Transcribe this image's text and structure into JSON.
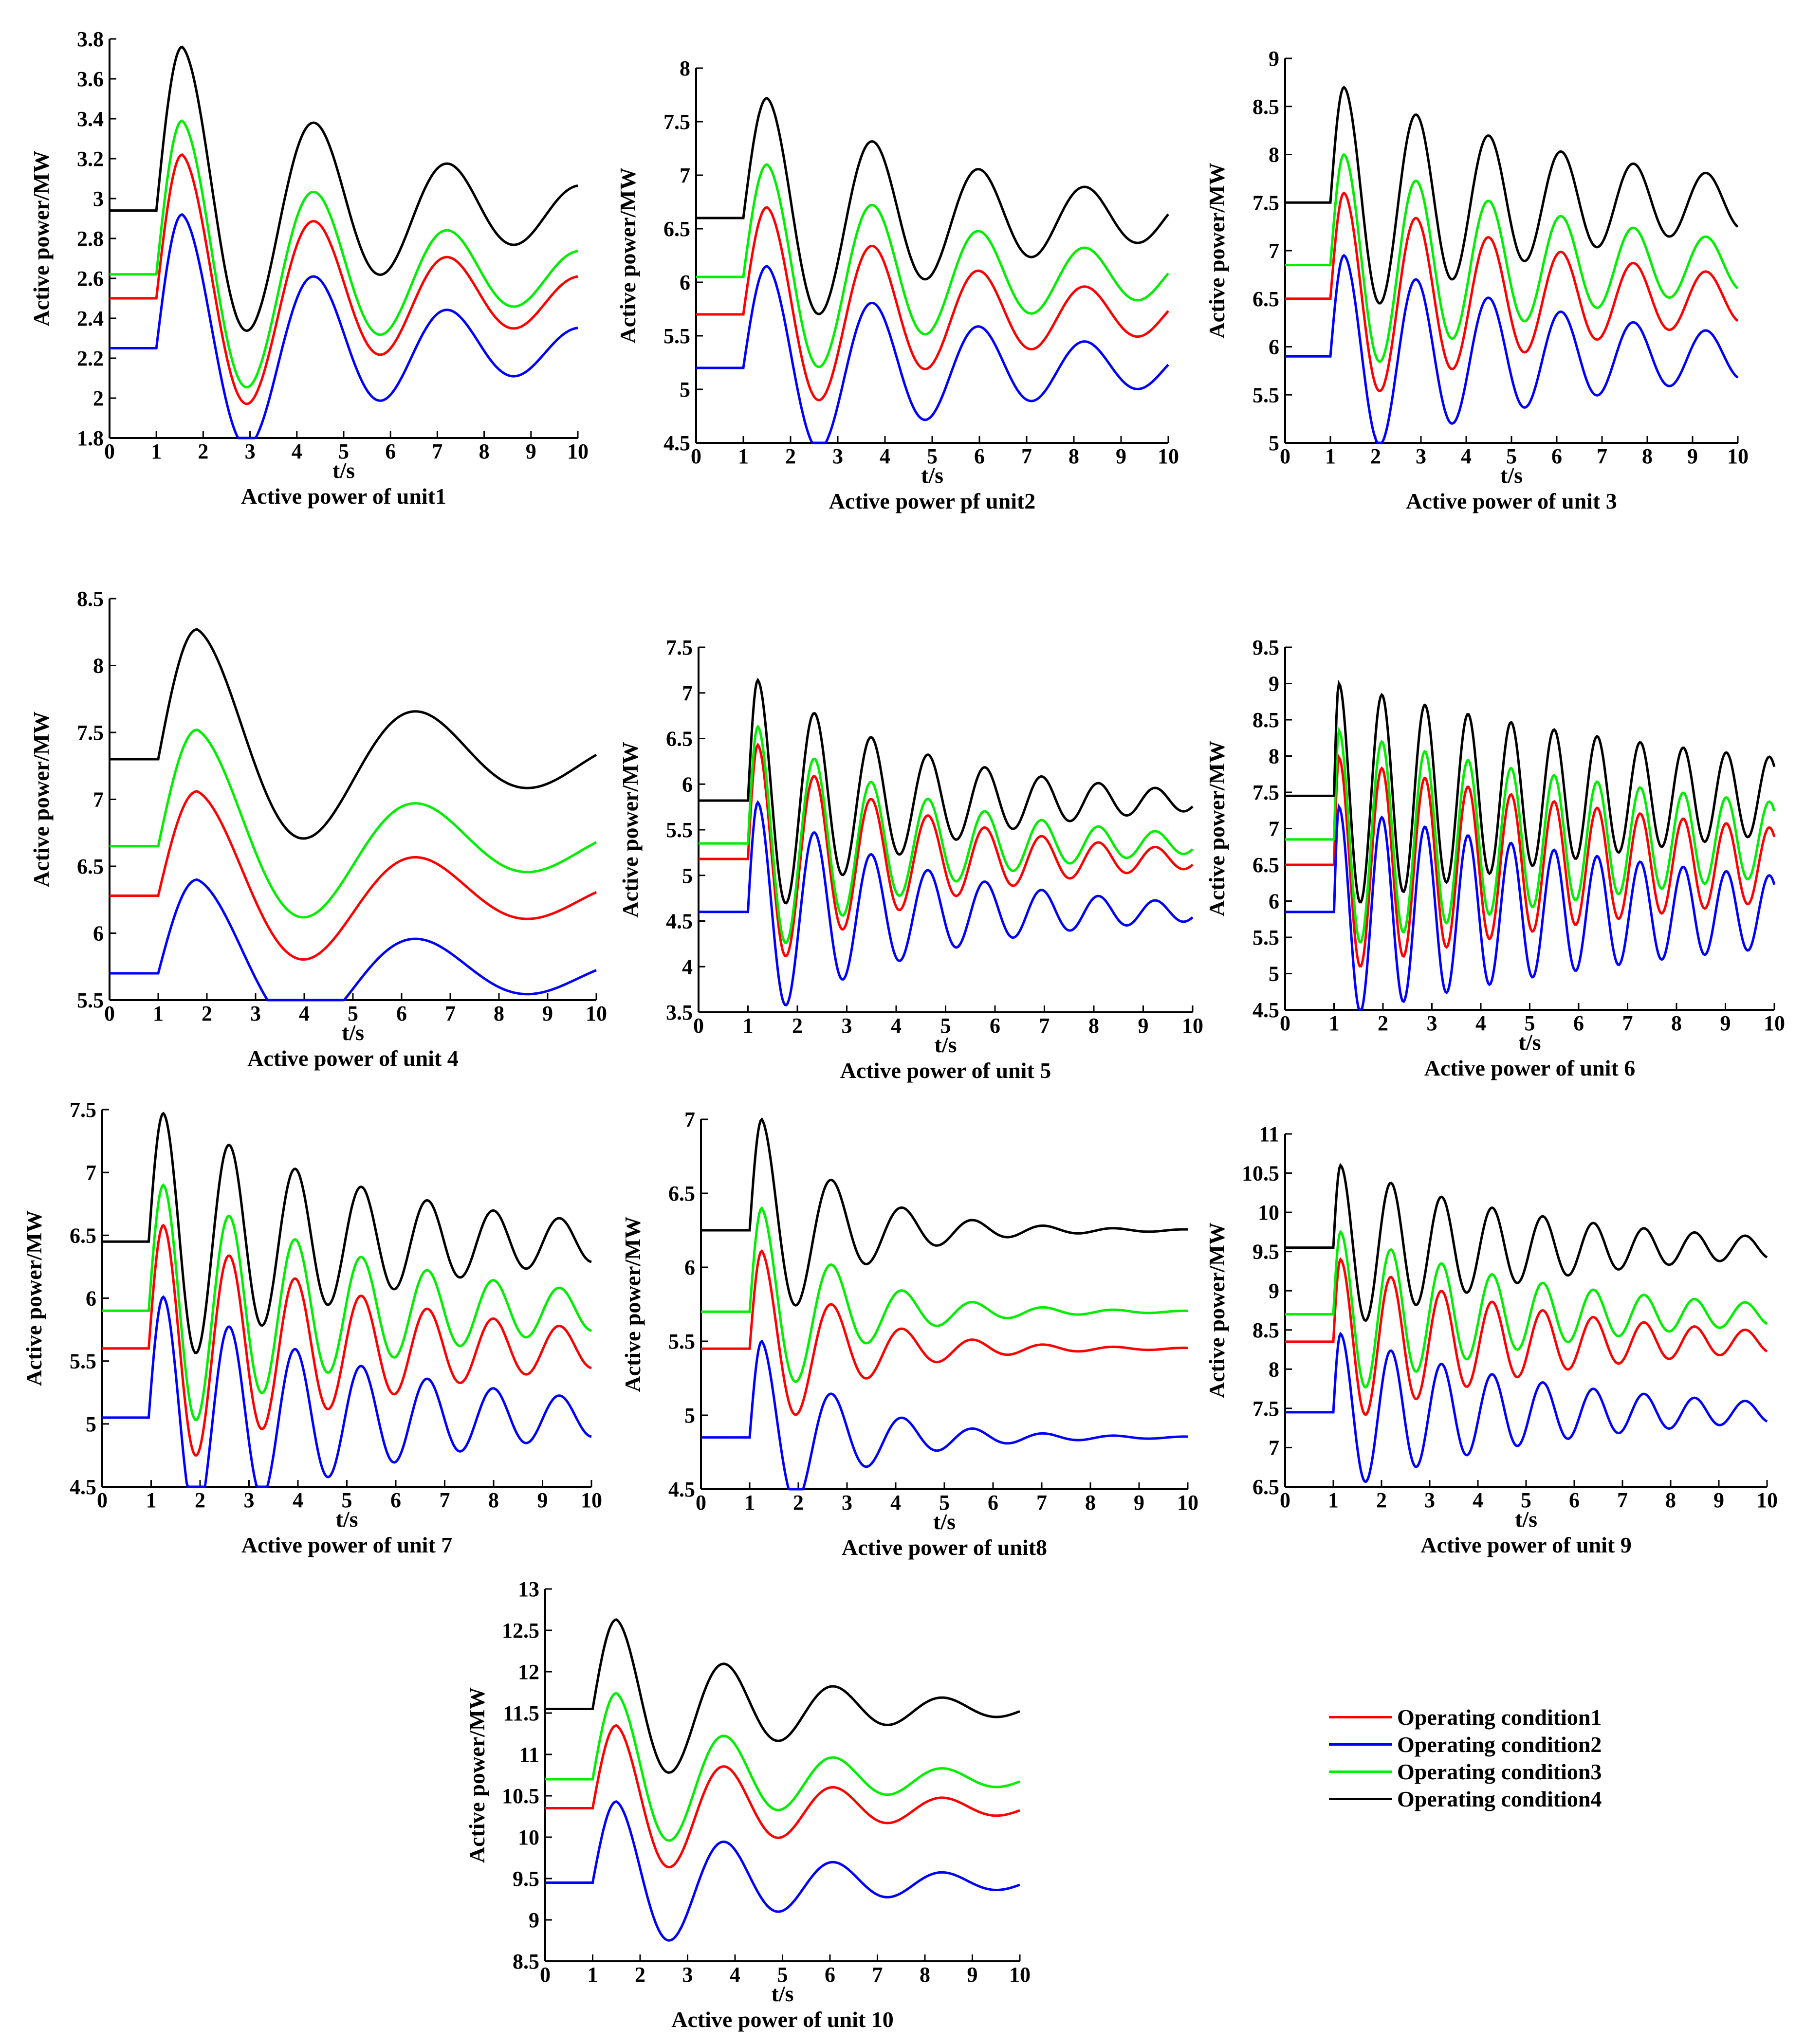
{
  "chart_data": [
    {
      "type": "line",
      "title": "Active power of unit1",
      "xlabel": "t/s",
      "ylabel": "Active power/MW",
      "xlim": [
        0,
        10
      ],
      "ylim": [
        1.8,
        3.8
      ],
      "xticks": [
        "0",
        "1",
        "2",
        "3",
        "4",
        "5",
        "6",
        "7",
        "8",
        "9",
        "10"
      ],
      "yticks": [
        "1.8",
        "2",
        "2.2",
        "2.4",
        "2.6",
        "2.8",
        "3",
        "3.2",
        "3.4",
        "3.6",
        "3.8"
      ],
      "t_step": 1.0,
      "peak_time": 1.55,
      "period": 2.85,
      "decay": 0.22,
      "series": [
        {
          "name": "Operating condition1",
          "color": "#ff0000",
          "base": 2.5,
          "amp": 0.72
        },
        {
          "name": "Operating condition2",
          "color": "#0000ff",
          "base": 2.25,
          "amp": 0.67
        },
        {
          "name": "Operating condition3",
          "color": "#00ee00",
          "base": 2.62,
          "amp": 0.77
        },
        {
          "name": "Operating condition4",
          "color": "#000000",
          "base": 2.94,
          "amp": 0.82
        }
      ]
    },
    {
      "type": "line",
      "title": "Active power pf unit2",
      "xlabel": "t/s",
      "ylabel": "Active power/MW",
      "xlim": [
        0,
        10
      ],
      "ylim": [
        4.5,
        8
      ],
      "xticks": [
        "0",
        "1",
        "2",
        "3",
        "4",
        "5",
        "6",
        "7",
        "8",
        "9",
        "10"
      ],
      "yticks": [
        "4.5",
        "5",
        "5.5",
        "6",
        "6.5",
        "7",
        "7.5",
        "8"
      ],
      "t_step": 1.0,
      "peak_time": 1.5,
      "period": 2.25,
      "decay": 0.2,
      "series": [
        {
          "name": "Operating condition1",
          "color": "#ff0000",
          "base": 5.7,
          "amp": 1.0
        },
        {
          "name": "Operating condition2",
          "color": "#0000ff",
          "base": 5.2,
          "amp": 0.95
        },
        {
          "name": "Operating condition3",
          "color": "#00ee00",
          "base": 6.05,
          "amp": 1.05
        },
        {
          "name": "Operating condition4",
          "color": "#000000",
          "base": 6.6,
          "amp": 1.12
        }
      ]
    },
    {
      "type": "line",
      "title": "Active power of unit 3",
      "xlabel": "t/s",
      "ylabel": "Active power/MW",
      "xlim": [
        0,
        10
      ],
      "ylim": [
        5,
        9
      ],
      "xticks": [
        "0",
        "1",
        "2",
        "3",
        "4",
        "5",
        "6",
        "7",
        "8",
        "9",
        "10"
      ],
      "yticks": [
        "5",
        "5.5",
        "6",
        "6.5",
        "7",
        "7.5",
        "8",
        "8.5",
        "9"
      ],
      "t_step": 1.0,
      "peak_time": 1.3,
      "period": 1.6,
      "decay": 0.17,
      "series": [
        {
          "name": "Operating condition1",
          "color": "#ff0000",
          "base": 6.5,
          "amp": 1.1
        },
        {
          "name": "Operating condition2",
          "color": "#0000ff",
          "base": 5.9,
          "amp": 1.05
        },
        {
          "name": "Operating condition3",
          "color": "#00ee00",
          "base": 6.85,
          "amp": 1.15
        },
        {
          "name": "Operating condition4",
          "color": "#000000",
          "base": 7.5,
          "amp": 1.2
        }
      ]
    },
    {
      "type": "line",
      "title": "Active power of unit 4",
      "xlabel": "t/s",
      "ylabel": "Active power/MW",
      "xlim": [
        0,
        10
      ],
      "ylim": [
        5.5,
        8.5
      ],
      "xticks": [
        "0",
        "1",
        "2",
        "3",
        "4",
        "5",
        "6",
        "7",
        "8",
        "9",
        "10"
      ],
      "yticks": [
        "5.5",
        "6",
        "6.5",
        "7",
        "7.5",
        "8",
        "8.5"
      ],
      "t_step": 1.0,
      "peak_time": 1.8,
      "period": 4.6,
      "decay": 0.22,
      "series": [
        {
          "name": "Operating condition1",
          "color": "#ff0000",
          "base": 6.28,
          "amp": 0.78
        },
        {
          "name": "Operating condition2",
          "color": "#0000ff",
          "base": 5.7,
          "amp": 0.7
        },
        {
          "name": "Operating condition3",
          "color": "#00ee00",
          "base": 6.65,
          "amp": 0.87
        },
        {
          "name": "Operating condition4",
          "color": "#000000",
          "base": 7.3,
          "amp": 0.97
        }
      ]
    },
    {
      "type": "line",
      "title": "Active power of unit 5",
      "xlabel": "t/s",
      "ylabel": "Active power/MW",
      "xlim": [
        0,
        10
      ],
      "ylim": [
        3.5,
        7.5
      ],
      "xticks": [
        "0",
        "1",
        "2",
        "3",
        "4",
        "5",
        "6",
        "7",
        "8",
        "9",
        "10"
      ],
      "yticks": [
        "3.5",
        "4",
        "4.5",
        "5",
        "5.5",
        "6",
        "6.5",
        "7",
        "7.5"
      ],
      "t_step": 1.0,
      "peak_time": 1.2,
      "period": 1.15,
      "decay": 0.28,
      "series": [
        {
          "name": "Operating condition1",
          "color": "#ff0000",
          "base": 5.18,
          "amp": 1.25
        },
        {
          "name": "Operating condition2",
          "color": "#0000ff",
          "base": 4.6,
          "amp": 1.2
        },
        {
          "name": "Operating condition3",
          "color": "#00ee00",
          "base": 5.35,
          "amp": 1.28
        },
        {
          "name": "Operating condition4",
          "color": "#000000",
          "base": 5.82,
          "amp": 1.32
        }
      ]
    },
    {
      "type": "line",
      "title": "Active power of unit 6",
      "xlabel": "t/s",
      "ylabel": "Active power/MW",
      "xlim": [
        0,
        10
      ],
      "ylim": [
        4.5,
        9.5
      ],
      "xticks": [
        "0",
        "1",
        "2",
        "3",
        "4",
        "5",
        "6",
        "7",
        "8",
        "9",
        "10"
      ],
      "yticks": [
        "4.5",
        "5",
        "5.5",
        "6",
        "6.5",
        "7",
        "7.5",
        "8",
        "8.5",
        "9",
        "9.5"
      ],
      "t_step": 1.0,
      "peak_time": 1.1,
      "period": 0.88,
      "decay": 0.12,
      "series": [
        {
          "name": "Operating condition1",
          "color": "#ff0000",
          "base": 6.5,
          "amp": 1.48
        },
        {
          "name": "Operating condition2",
          "color": "#0000ff",
          "base": 5.85,
          "amp": 1.45
        },
        {
          "name": "Operating condition3",
          "color": "#00ee00",
          "base": 6.85,
          "amp": 1.5
        },
        {
          "name": "Operating condition4",
          "color": "#000000",
          "base": 7.45,
          "amp": 1.55
        }
      ]
    },
    {
      "type": "line",
      "title": "Active power of unit 7",
      "xlabel": "t/s",
      "ylabel": "Active power/MW",
      "xlim": [
        0,
        10
      ],
      "ylim": [
        4.5,
        7.5
      ],
      "xticks": [
        "0",
        "1",
        "2",
        "3",
        "4",
        "5",
        "6",
        "7",
        "8",
        "9",
        "10"
      ],
      "yticks": [
        "4.5",
        "5",
        "5.5",
        "6",
        "6.5",
        "7",
        "7.5"
      ],
      "t_step": 0.95,
      "peak_time": 1.25,
      "period": 1.35,
      "decay": 0.21,
      "series": [
        {
          "name": "Operating condition1",
          "color": "#ff0000",
          "base": 5.6,
          "amp": 0.98
        },
        {
          "name": "Operating condition2",
          "color": "#0000ff",
          "base": 5.05,
          "amp": 0.96
        },
        {
          "name": "Operating condition3",
          "color": "#00ee00",
          "base": 5.9,
          "amp": 1.0
        },
        {
          "name": "Operating condition4",
          "color": "#000000",
          "base": 6.45,
          "amp": 1.02
        }
      ]
    },
    {
      "type": "line",
      "title": "Active power of unit8",
      "xlabel": "t/s",
      "ylabel": "Active power/MW",
      "xlim": [
        0,
        10
      ],
      "ylim": [
        4.5,
        7
      ],
      "xticks": [
        "0",
        "1",
        "2",
        "3",
        "4",
        "5",
        "6",
        "7",
        "8",
        "9",
        "10"
      ],
      "yticks": [
        "4.5",
        "5",
        "5.5",
        "6",
        "6.5",
        "7"
      ],
      "t_step": 1.0,
      "peak_time": 1.25,
      "period": 1.45,
      "decay": 0.55,
      "series": [
        {
          "name": "Operating condition1",
          "color": "#ff0000",
          "base": 5.45,
          "amp": 0.66
        },
        {
          "name": "Operating condition2",
          "color": "#0000ff",
          "base": 4.85,
          "amp": 0.65
        },
        {
          "name": "Operating condition3",
          "color": "#00ee00",
          "base": 5.7,
          "amp": 0.7
        },
        {
          "name": "Operating condition4",
          "color": "#000000",
          "base": 6.25,
          "amp": 0.75
        }
      ]
    },
    {
      "type": "line",
      "title": "Active power of unit 9",
      "xlabel": "t/s",
      "ylabel": "Active power/MW",
      "xlim": [
        0,
        10
      ],
      "ylim": [
        6.5,
        11
      ],
      "xticks": [
        "0",
        "1",
        "2",
        "3",
        "4",
        "5",
        "6",
        "7",
        "8",
        "9",
        "10"
      ],
      "yticks": [
        "6.5",
        "7",
        "7.5",
        "8",
        "8.5",
        "9",
        "9.5",
        "10",
        "10.5",
        "11"
      ],
      "t_step": 1.0,
      "peak_time": 1.15,
      "period": 1.05,
      "decay": 0.23,
      "series": [
        {
          "name": "Operating condition1",
          "color": "#ff0000",
          "base": 8.35,
          "amp": 1.05
        },
        {
          "name": "Operating condition2",
          "color": "#0000ff",
          "base": 7.45,
          "amp": 1.0
        },
        {
          "name": "Operating condition3",
          "color": "#00ee00",
          "base": 8.7,
          "amp": 1.05
        },
        {
          "name": "Operating condition4",
          "color": "#000000",
          "base": 9.55,
          "amp": 1.05
        }
      ]
    },
    {
      "type": "line",
      "title": "Active power of unit 10",
      "xlabel": "t/s",
      "ylabel": "Active power/MW",
      "xlim": [
        0,
        10
      ],
      "ylim": [
        8.5,
        13
      ],
      "xticks": [
        "0",
        "1",
        "2",
        "3",
        "4",
        "5",
        "6",
        "7",
        "8",
        "9",
        "10"
      ],
      "yticks": [
        "8.5",
        "9",
        "9.5",
        "10",
        "10.5",
        "11",
        "11.5",
        "12",
        "12.5",
        "13"
      ],
      "t_step": 1.0,
      "peak_time": 1.5,
      "period": 2.3,
      "decay": 0.3,
      "series": [
        {
          "name": "Operating condition1",
          "color": "#ff0000",
          "base": 10.35,
          "amp": 1.0
        },
        {
          "name": "Operating condition2",
          "color": "#0000ff",
          "base": 9.45,
          "amp": 0.98
        },
        {
          "name": "Operating condition3",
          "color": "#00ee00",
          "base": 10.7,
          "amp": 1.04
        },
        {
          "name": "Operating condition4",
          "color": "#000000",
          "base": 11.55,
          "amp": 1.08
        }
      ]
    }
  ],
  "legend": [
    {
      "label": "Operating condition1",
      "color": "#ff0000"
    },
    {
      "label": "Operating condition2",
      "color": "#0000ff"
    },
    {
      "label": "Operating condition3",
      "color": "#00ee00"
    },
    {
      "label": "Operating condition4",
      "color": "#000000"
    }
  ]
}
